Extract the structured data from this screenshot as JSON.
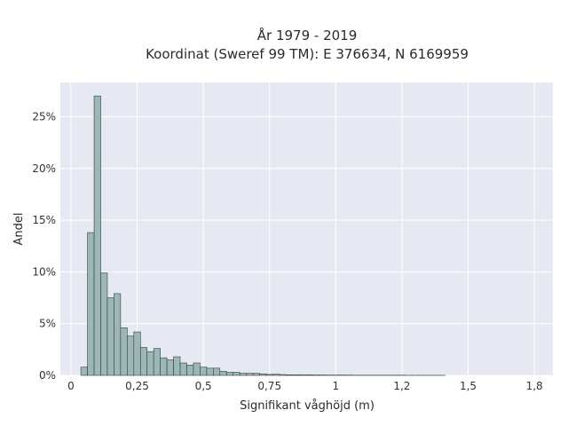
{
  "chart_data": {
    "type": "bar",
    "title_line1": "År 1979 - 2019",
    "title_line2": "Koordinat (Sweref 99 TM): E 376634, N 6169959",
    "xlabel": "Signifikant våghöjd (m)",
    "ylabel": "Andel",
    "xlim": [
      -0.04,
      1.82
    ],
    "ylim": [
      0,
      0.283
    ],
    "x_ticks": [
      0,
      0.25,
      0.5,
      0.75,
      1,
      1.25,
      1.5,
      1.75
    ],
    "x_tick_labels": [
      "0",
      "0,25",
      "0,5",
      "0,75",
      "1",
      "1,2",
      "1,5",
      "1,8"
    ],
    "y_ticks": [
      0,
      0.05,
      0.1,
      0.15,
      0.2,
      0.25
    ],
    "y_tick_labels": [
      "0%",
      "5%",
      "10%",
      "15%",
      "20%",
      "25%"
    ],
    "bin_width": 0.025,
    "bins_start": [
      0.0375,
      0.0625,
      0.0875,
      0.1125,
      0.1375,
      0.1625,
      0.1875,
      0.2125,
      0.2375,
      0.2625,
      0.2875,
      0.3125,
      0.3375,
      0.3625,
      0.3875,
      0.4125,
      0.4375,
      0.4625,
      0.4875,
      0.5125,
      0.5375,
      0.5625,
      0.5875,
      0.6125,
      0.6375,
      0.6625,
      0.6875,
      0.7125,
      0.7375,
      0.7625,
      0.7875,
      0.8125,
      0.8375,
      0.8625,
      0.8875,
      0.9125,
      0.9375,
      0.9625,
      0.9875,
      1.0125,
      1.0375,
      1.0625,
      1.0875,
      1.1125,
      1.1375,
      1.1625,
      1.1875,
      1.2125,
      1.2375,
      1.2625,
      1.2875,
      1.3125,
      1.3375,
      1.3625,
      1.3875
    ],
    "values": [
      0.008,
      0.138,
      0.27,
      0.099,
      0.075,
      0.079,
      0.046,
      0.038,
      0.042,
      0.027,
      0.023,
      0.026,
      0.017,
      0.015,
      0.018,
      0.012,
      0.01,
      0.012,
      0.008,
      0.007,
      0.007,
      0.004,
      0.003,
      0.003,
      0.002,
      0.002,
      0.002,
      0.0015,
      0.001,
      0.0012,
      0.0008,
      0.0006,
      0.0006,
      0.0005,
      0.0005,
      0.0004,
      0.0004,
      0.0003,
      0.0003,
      0.0003,
      0.0003,
      0.0002,
      0.0002,
      0.0002,
      0.0002,
      0.0002,
      0.0002,
      0.0002,
      0.0002,
      0.0001,
      0.0001,
      0.0001,
      0.0001,
      0.0001,
      0.0001
    ],
    "grid": true,
    "colors": {
      "plot_background": "#e6e9f1",
      "grid": "#ffffff",
      "bar_fill": "#9db6b6",
      "bar_stroke": "#2f3f3f",
      "text": "#2a2a2a"
    }
  }
}
